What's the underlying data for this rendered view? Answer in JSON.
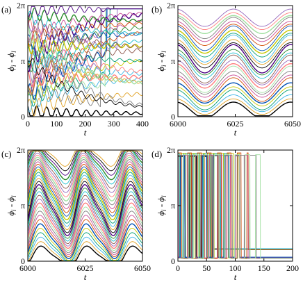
{
  "figure": {
    "palette": [
      "#000000",
      "#e0a020",
      "#3cb4e6",
      "#009e73",
      "#c8c800",
      "#0050b4",
      "#d24b00",
      "#c84b96",
      "#7f7f7f",
      "#a0e0a0",
      "#ff7f7f",
      "#9467bd",
      "#8c564b",
      "#17becf",
      "#2c8c2c",
      "#4b0082"
    ]
  },
  "chart_data": [
    {
      "type": "line",
      "panel_label": "(a)",
      "xlabel": "t",
      "ylabel_main": "ϕ",
      "ylabel_sub1": "i",
      "ylabel_mid": " - ϕ",
      "ylabel_sub2": "l",
      "xlim": [
        0,
        400
      ],
      "ylim": [
        0,
        6.2832
      ],
      "x_ticks": [
        0,
        100,
        200,
        300,
        400
      ],
      "x_tick_labels": [
        "0",
        "100",
        "200",
        "300",
        "400"
      ],
      "y_ticks": [
        0,
        3.1416,
        6.2832
      ],
      "y_tick_labels": [
        "0",
        "π",
        "2π"
      ],
      "description_model": "transient",
      "n_series": 32,
      "seed": 11
    },
    {
      "type": "line",
      "panel_label": "(b)",
      "xlabel": "t",
      "ylabel_main": "ϕ",
      "ylabel_sub1": "i",
      "ylabel_mid": " - ϕ",
      "ylabel_sub2": "l",
      "xlim": [
        6000,
        6050
      ],
      "ylim": [
        0,
        6.2832
      ],
      "x_ticks": [
        6000,
        6025,
        6050
      ],
      "x_tick_labels": [
        "6000",
        "6025",
        "6050"
      ],
      "y_ticks": [
        0,
        3.1416,
        6.2832
      ],
      "y_tick_labels": [
        "0",
        "π",
        "2π"
      ],
      "description_model": "breathing",
      "n_series": 28,
      "seed": 23
    },
    {
      "type": "line",
      "panel_label": "(c)",
      "xlabel": "t",
      "ylabel_main": "ϕ",
      "ylabel_sub1": "i",
      "ylabel_mid": " - ϕ",
      "ylabel_sub2": "l",
      "xlim": [
        6000,
        6050
      ],
      "ylim": [
        0,
        6.2832
      ],
      "x_ticks": [
        6000,
        6025,
        6050
      ],
      "x_tick_labels": [
        "6000",
        "6025",
        "6050"
      ],
      "y_ticks": [
        0,
        3.1416,
        6.2832
      ],
      "y_tick_labels": [
        "0",
        "π",
        "2π"
      ],
      "description_model": "skewed",
      "n_series": 34,
      "seed": 37
    },
    {
      "type": "line",
      "panel_label": "(d)",
      "xlabel": "t",
      "ylabel_main": "ϕ",
      "ylabel_sub1": "i",
      "ylabel_mid": " - ϕ",
      "ylabel_sub2": "l",
      "xlim": [
        0,
        200
      ],
      "ylim": [
        0,
        6.2832
      ],
      "x_ticks": [
        0,
        50,
        100,
        150,
        200
      ],
      "x_tick_labels": [
        "0",
        "50",
        "100",
        "150",
        "200"
      ],
      "y_ticks": [
        0,
        3.1416,
        6.2832
      ],
      "y_tick_labels": [
        "0",
        "π",
        "2π"
      ],
      "description_model": "slips",
      "n_series": 10,
      "seed": 53
    }
  ]
}
